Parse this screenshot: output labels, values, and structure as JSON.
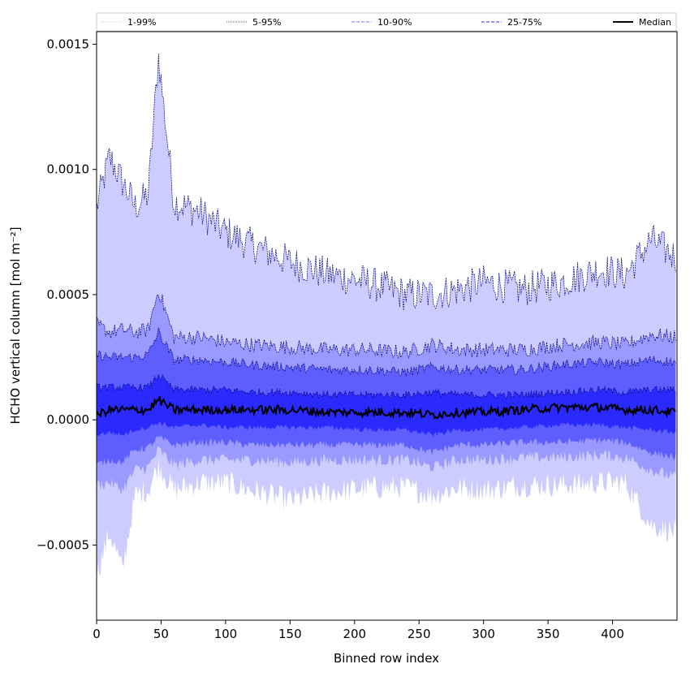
{
  "chart_data": {
    "type": "area",
    "title": "",
    "xlabel": "Binned row index",
    "ylabel": "HCHO vertical column [mol m⁻²]",
    "xlim": [
      0,
      450
    ],
    "ylim": [
      -0.0008,
      0.00155
    ],
    "x_ticks": [
      0,
      50,
      100,
      150,
      200,
      250,
      300,
      350,
      400
    ],
    "y_ticks": [
      -0.0005,
      0.0,
      0.0005,
      0.001,
      0.0015
    ],
    "y_tick_labels": [
      "−0.0005",
      "0.0000",
      "0.0005",
      "0.0010",
      "0.0015"
    ],
    "grid": false,
    "legend_placement": "top (above axes, horizontal)",
    "legend": [
      {
        "name": "1-99%",
        "color": "#d8d8ee",
        "style": "dotted"
      },
      {
        "name": "5-95%",
        "color": "#7777cc",
        "style": "dotted"
      },
      {
        "name": "10-90%",
        "color": "#8c8cf5",
        "style": "dashed"
      },
      {
        "name": "25-75%",
        "color": "#5555e0",
        "style": "dashed"
      },
      {
        "name": "Median",
        "color": "#000000",
        "style": "solid"
      }
    ],
    "colors": {
      "band_1_99": "#ccccff",
      "band_5_95": "#9999ff",
      "band_10_90": "#5e5eff",
      "band_25_75": "#2a2aff",
      "edge": "#00007a",
      "median": "#000000"
    },
    "x": [
      0,
      10,
      20,
      30,
      40,
      48,
      60,
      80,
      100,
      120,
      150,
      180,
      210,
      240,
      260,
      280,
      300,
      330,
      360,
      390,
      410,
      430,
      449
    ],
    "series": [
      {
        "name": "1-99%",
        "role": "upper",
        "values": [
          0.00085,
          0.00105,
          0.00095,
          0.00085,
          0.0009,
          0.00145,
          0.00087,
          0.00083,
          0.00075,
          0.0007,
          0.00063,
          0.00058,
          0.00055,
          0.0005,
          0.0005,
          0.00052,
          0.00055,
          0.00052,
          0.00055,
          0.0006,
          0.00058,
          0.00072,
          0.00065
        ]
      },
      {
        "name": "1-99%",
        "role": "lower",
        "values": [
          -0.00062,
          -0.00045,
          -0.0006,
          -0.0003,
          -0.00028,
          -0.00018,
          -0.00028,
          -0.00025,
          -0.00025,
          -0.00028,
          -0.00032,
          -0.00029,
          -0.00027,
          -0.00027,
          -0.0003,
          -0.00027,
          -0.00028,
          -0.00026,
          -0.00026,
          -0.00025,
          -0.00025,
          -0.00042,
          -0.00045
        ]
      },
      {
        "name": "5-95%",
        "role": "upper",
        "values": [
          0.00038,
          0.00035,
          0.00036,
          0.00035,
          0.00036,
          0.00052,
          0.00033,
          0.00033,
          0.00031,
          0.0003,
          0.00029,
          0.00028,
          0.00028,
          0.00027,
          0.0003,
          0.00028,
          0.00028,
          0.00028,
          0.0003,
          0.00031,
          0.0003,
          0.00034,
          0.00033
        ]
      },
      {
        "name": "5-95%",
        "role": "lower",
        "values": [
          -0.00026,
          -0.00025,
          -0.00028,
          -0.0002,
          -0.00019,
          -0.00012,
          -0.00018,
          -0.00016,
          -0.00016,
          -0.00016,
          -0.00017,
          -0.00016,
          -0.00016,
          -0.00016,
          -0.00019,
          -0.00016,
          -0.00016,
          -0.00015,
          -0.00015,
          -0.00014,
          -0.00015,
          -0.0002,
          -0.00023
        ]
      },
      {
        "name": "10-90%",
        "role": "upper",
        "values": [
          0.00026,
          0.00025,
          0.00025,
          0.00025,
          0.00026,
          0.00035,
          0.00024,
          0.00024,
          0.00023,
          0.00022,
          0.00021,
          0.0002,
          0.0002,
          0.00019,
          0.00021,
          0.0002,
          0.0002,
          0.0002,
          0.00022,
          0.00023,
          0.00022,
          0.00024,
          0.00023
        ]
      },
      {
        "name": "10-90%",
        "role": "lower",
        "values": [
          -0.00018,
          -0.00016,
          -0.00017,
          -0.00012,
          -0.00011,
          -7e-05,
          -0.0001,
          -9e-05,
          -9e-05,
          -0.0001,
          -0.0001,
          -0.0001,
          -0.0001,
          -0.0001,
          -0.00013,
          -0.0001,
          -0.0001,
          -9e-05,
          -9e-05,
          -8e-05,
          -9e-05,
          -0.00013,
          -0.00015
        ]
      },
      {
        "name": "25-75%",
        "role": "upper",
        "values": [
          0.00013,
          0.00013,
          0.00013,
          0.00013,
          0.00013,
          0.00018,
          0.00012,
          0.00012,
          0.00012,
          0.00011,
          0.00011,
          0.0001,
          0.0001,
          0.0001,
          0.00011,
          0.0001,
          0.0001,
          0.0001,
          0.00011,
          0.00012,
          0.00011,
          0.00012,
          0.00012
        ]
      },
      {
        "name": "25-75%",
        "role": "lower",
        "values": [
          -6e-05,
          -5e-05,
          -6e-05,
          -4e-05,
          -3e-05,
          -1e-05,
          -3e-05,
          -2e-05,
          -3e-05,
          -3e-05,
          -3e-05,
          -3e-05,
          -4e-05,
          -4e-05,
          -6e-05,
          -4e-05,
          -4e-05,
          -3e-05,
          -2e-05,
          -2e-05,
          -3e-05,
          -4e-05,
          -5e-05
        ]
      },
      {
        "name": "Median",
        "values": [
          2e-05,
          4e-05,
          4e-05,
          4e-05,
          4e-05,
          8e-05,
          4e-05,
          4e-05,
          4e-05,
          4e-05,
          4e-05,
          3e-05,
          3e-05,
          3e-05,
          2e-05,
          3e-05,
          3e-05,
          4e-05,
          5e-05,
          5e-05,
          4e-05,
          4e-05,
          3e-05
        ]
      }
    ]
  }
}
